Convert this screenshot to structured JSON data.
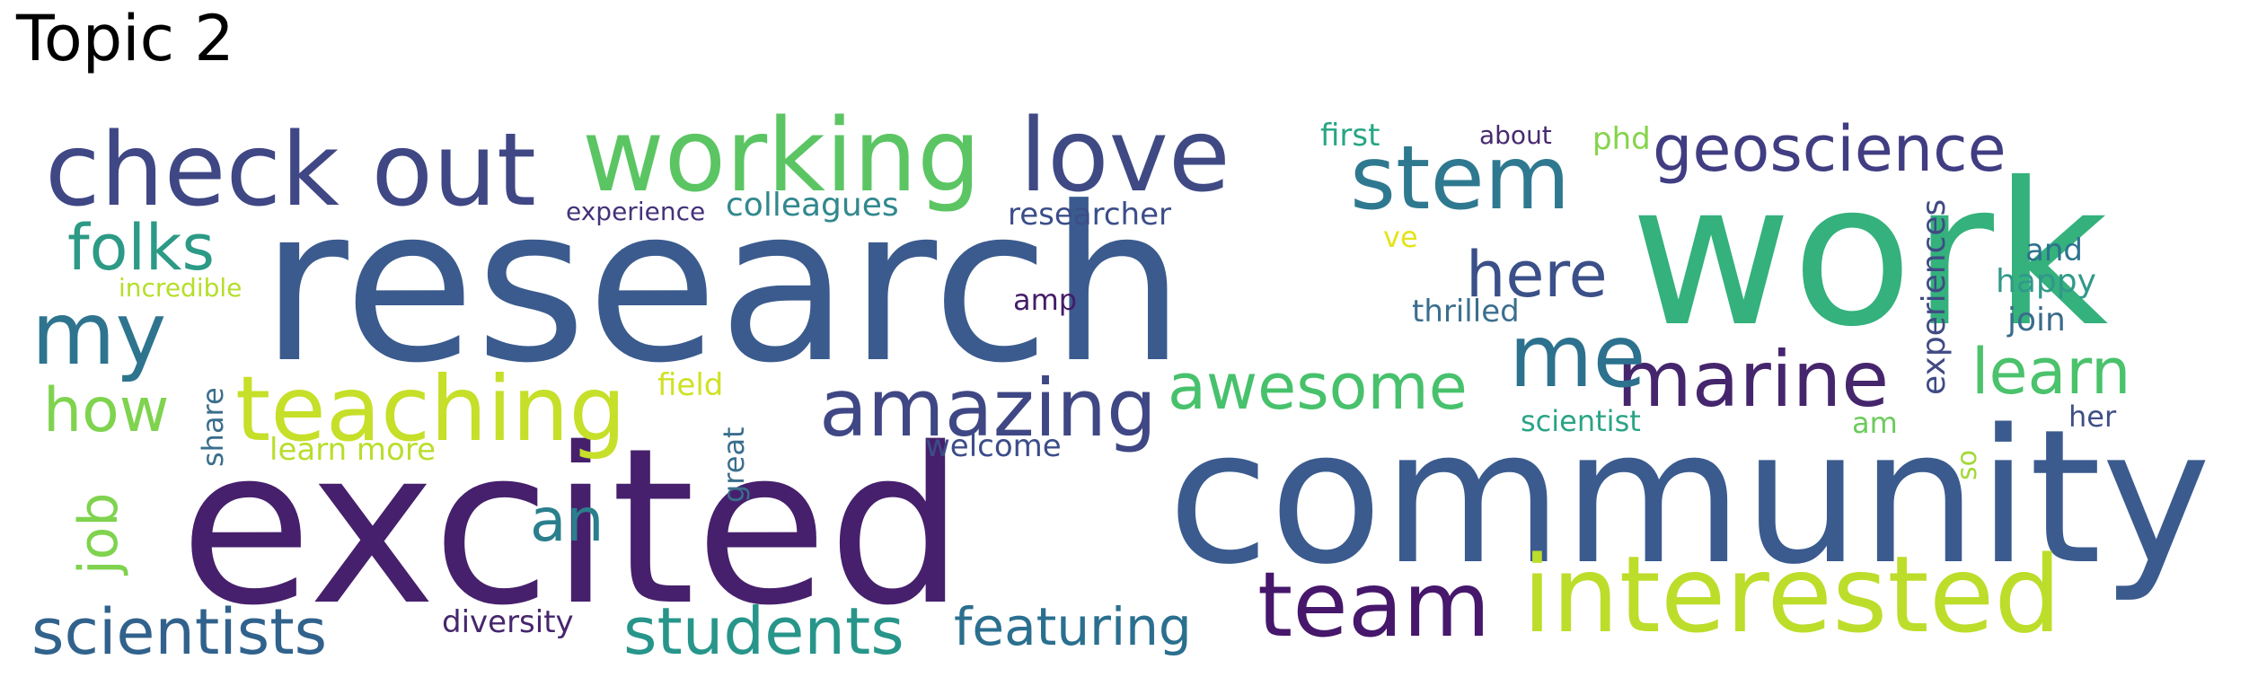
{
  "title": "Topic 2",
  "words": [
    {
      "text": "research",
      "color": "#3b5b8e"
    },
    {
      "text": "excited",
      "color": "#46206c"
    },
    {
      "text": "community",
      "color": "#3b5b8e"
    },
    {
      "text": "work",
      "color": "#34b17c"
    },
    {
      "text": "check out",
      "color": "#3f4784"
    },
    {
      "text": "working",
      "color": "#5cc563"
    },
    {
      "text": "love",
      "color": "#3f4a84"
    },
    {
      "text": "stem",
      "color": "#2f7990"
    },
    {
      "text": "geoscience",
      "color": "#413d82"
    },
    {
      "text": "interested",
      "color": "#bddd2b"
    },
    {
      "text": "team",
      "color": "#46176b"
    },
    {
      "text": "teaching",
      "color": "#c6df29"
    },
    {
      "text": "amazing",
      "color": "#3f4784"
    },
    {
      "text": "awesome",
      "color": "#47c16c"
    },
    {
      "text": "marine",
      "color": "#45266d"
    },
    {
      "text": "students",
      "color": "#27958a"
    },
    {
      "text": "scientists",
      "color": "#31628c"
    },
    {
      "text": "featuring",
      "color": "#2b6f8f"
    },
    {
      "text": "here",
      "color": "#3b4f89"
    },
    {
      "text": "me",
      "color": "#2c718e"
    },
    {
      "text": "my",
      "color": "#2e748e"
    },
    {
      "text": "folks",
      "color": "#2c9a86"
    },
    {
      "text": "learn",
      "color": "#4bc26c"
    },
    {
      "text": "how",
      "color": "#7fd34e"
    },
    {
      "text": "job",
      "color": "#7fd34e"
    },
    {
      "text": "an",
      "color": "#2b7f8c"
    },
    {
      "text": "experiences",
      "color": "#404b84"
    },
    {
      "text": "first",
      "color": "#26a685"
    },
    {
      "text": "about",
      "color": "#472a70"
    },
    {
      "text": "phd",
      "color": "#84d44b"
    },
    {
      "text": "colleagues",
      "color": "#31888d"
    },
    {
      "text": "researcher",
      "color": "#3c4e89"
    },
    {
      "text": "experience",
      "color": "#453279"
    },
    {
      "text": "incredible",
      "color": "#b5de2b"
    },
    {
      "text": "thrilled",
      "color": "#3b6e8e"
    },
    {
      "text": "happy",
      "color": "#30998a"
    },
    {
      "text": "and",
      "color": "#2c728e"
    },
    {
      "text": "join",
      "color": "#3b6b8c"
    },
    {
      "text": "her",
      "color": "#3f4f86"
    },
    {
      "text": "ve",
      "color": "#e3e41c"
    },
    {
      "text": "amp",
      "color": "#441c67"
    },
    {
      "text": "field",
      "color": "#cfe125"
    },
    {
      "text": "scientist",
      "color": "#2aa486"
    },
    {
      "text": "am",
      "color": "#6ccb5d"
    },
    {
      "text": "share",
      "color": "#3a6e8c"
    },
    {
      "text": "great",
      "color": "#3a6e8c"
    },
    {
      "text": "learn more",
      "color": "#b9de2c"
    },
    {
      "text": "welcome",
      "color": "#3c4d89"
    },
    {
      "text": "diversity",
      "color": "#46266d"
    },
    {
      "text": "so",
      "color": "#a3d93a"
    }
  ]
}
